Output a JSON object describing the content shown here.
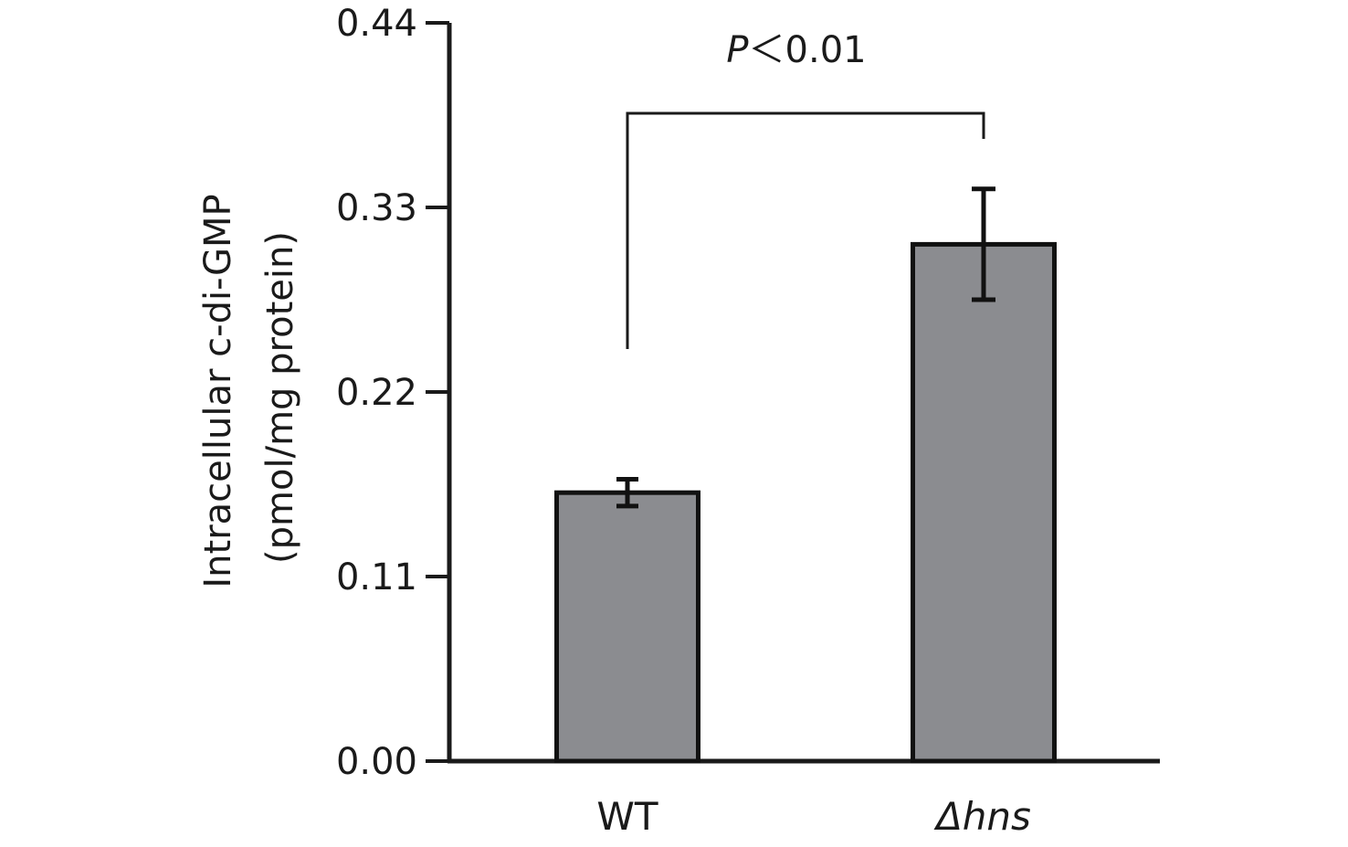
{
  "chart_data": {
    "type": "bar",
    "title": "",
    "xlabel": "",
    "ylabel": "Intracellular c-di-GMP",
    "ylabel_unit": "(pmol/mg protein)",
    "ylim": [
      0,
      0.44
    ],
    "yticks": [
      "0.00",
      "0.11",
      "0.22",
      "0.33",
      "0.44"
    ],
    "categories": [
      "WT",
      "Δhns"
    ],
    "series": [
      {
        "values": [
          0.16,
          0.308
        ],
        "errors": [
          0.008,
          0.033
        ],
        "color": "#8b8c90"
      }
    ],
    "significance": {
      "from": 0,
      "to": 1,
      "label_italic": "P",
      "label_rest": "＜0.01"
    },
    "grid": false,
    "legend": "none"
  }
}
